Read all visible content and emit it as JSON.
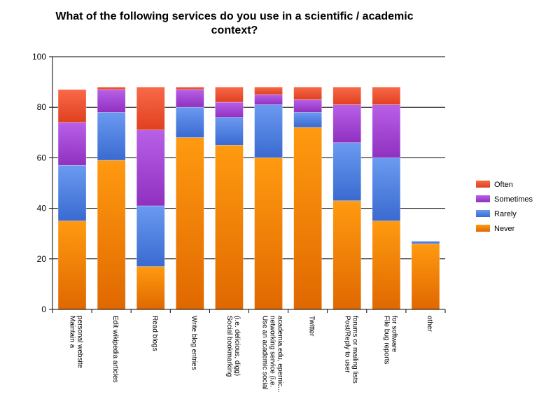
{
  "chart_data": {
    "type": "bar",
    "stacked": true,
    "title_lines": [
      "What of the following services do you use in a scientific / academic",
      "context?"
    ],
    "xlabel": "",
    "ylabel": "",
    "ylim": [
      0,
      100
    ],
    "yticks": [
      0,
      20,
      40,
      60,
      80,
      100
    ],
    "grid": true,
    "legend_position": "right",
    "categories": [
      [
        "Maintain a",
        "personal website"
      ],
      [
        "Edit wikipedia articles"
      ],
      [
        "Read blogs"
      ],
      [
        "Write blog entries"
      ],
      [
        "Social bookmarking",
        "(i.e. delicious, digg)"
      ],
      [
        "Use an academic social",
        "networking service (i.e.",
        "academia.edu, epernic..."
      ],
      [
        "Twitter"
      ],
      [
        "Post/Reply to user",
        "forums or mailing lists"
      ],
      [
        "File bug reports",
        "for software"
      ],
      [
        "other"
      ]
    ],
    "series": [
      {
        "name": "Never",
        "color": "#f08000",
        "values": [
          35,
          59,
          17,
          68,
          65,
          60,
          72,
          43,
          35,
          26
        ]
      },
      {
        "name": "Rarely",
        "color": "#4a7fe0",
        "values": [
          22,
          19,
          24,
          12,
          11,
          21,
          6,
          23,
          25,
          1
        ]
      },
      {
        "name": "Sometimes",
        "color": "#a540d8",
        "values": [
          17,
          9,
          30,
          7,
          6,
          4,
          5,
          15,
          21,
          0
        ]
      },
      {
        "name": "Often",
        "color": "#f05030",
        "values": [
          13,
          1,
          17,
          1,
          6,
          3,
          5,
          7,
          7,
          0
        ]
      }
    ],
    "legend_order": [
      "Often",
      "Sometimes",
      "Rarely",
      "Never"
    ]
  }
}
